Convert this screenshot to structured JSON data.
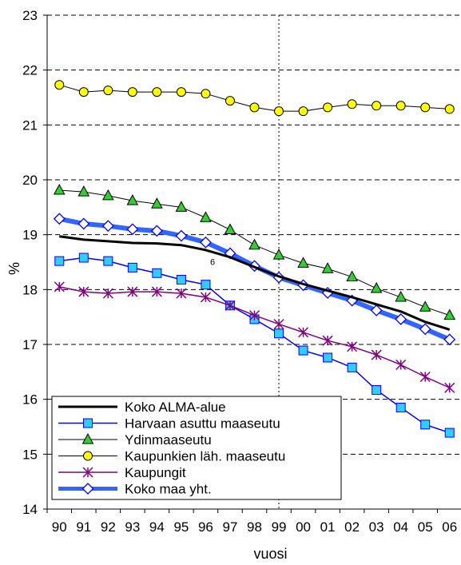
{
  "chart_data": {
    "type": "line",
    "title": "",
    "xlabel": "vuosi",
    "ylabel": "%",
    "categories": [
      "90",
      "91",
      "92",
      "93",
      "94",
      "95",
      "96",
      "97",
      "98",
      "99",
      "00",
      "01",
      "02",
      "03",
      "04",
      "05",
      "06"
    ],
    "ylim": [
      14,
      23
    ],
    "yticks": [
      "14",
      "15",
      "16",
      "17",
      "18",
      "19",
      "20",
      "21",
      "22",
      "23"
    ],
    "grid": "horizontal dashed",
    "reference_line_at": "99",
    "annotation": "6",
    "legend_position": "bottom-left",
    "series": [
      {
        "name": "Koko ALMA-alue",
        "color": "#000000",
        "marker": "none",
        "values": [
          18.97,
          18.91,
          18.88,
          18.85,
          18.84,
          18.81,
          18.72,
          18.59,
          18.41,
          18.24,
          18.1,
          17.98,
          17.86,
          17.73,
          17.6,
          17.41,
          17.27
        ]
      },
      {
        "name": "Harvaan asuttu maaseutu",
        "color": "#0000ff",
        "marker": "square",
        "values": [
          18.52,
          18.58,
          18.52,
          18.4,
          18.3,
          18.18,
          18.09,
          17.71,
          17.46,
          17.2,
          16.89,
          16.76,
          16.58,
          16.17,
          15.85,
          15.54,
          15.39
        ]
      },
      {
        "name": "Ydinmaaseutu",
        "color": "#000000",
        "marker": "triangle",
        "values": [
          19.81,
          19.78,
          19.71,
          19.62,
          19.56,
          19.5,
          19.31,
          19.09,
          18.81,
          18.63,
          18.48,
          18.38,
          18.23,
          18.02,
          17.86,
          17.68,
          17.53
        ]
      },
      {
        "name": "Kaupunkien läh. maaseutu",
        "color": "#000000",
        "marker": "circle",
        "values": [
          21.73,
          21.6,
          21.63,
          21.6,
          21.6,
          21.6,
          21.57,
          21.44,
          21.32,
          21.25,
          21.25,
          21.32,
          21.38,
          21.35,
          21.35,
          21.32,
          21.29
        ]
      },
      {
        "name": "Kaupungit",
        "color": "#800080",
        "marker": "asterisk",
        "values": [
          18.05,
          17.96,
          17.93,
          17.96,
          17.96,
          17.93,
          17.86,
          17.71,
          17.53,
          17.37,
          17.22,
          17.07,
          16.96,
          16.81,
          16.63,
          16.41,
          16.21
        ]
      },
      {
        "name": "Koko maa yht.",
        "color": "#3366ff",
        "marker": "diamond",
        "values": [
          19.29,
          19.2,
          19.16,
          19.1,
          19.07,
          18.98,
          18.86,
          18.66,
          18.43,
          18.22,
          18.08,
          17.94,
          17.8,
          17.62,
          17.46,
          17.28,
          17.09
        ]
      }
    ]
  }
}
